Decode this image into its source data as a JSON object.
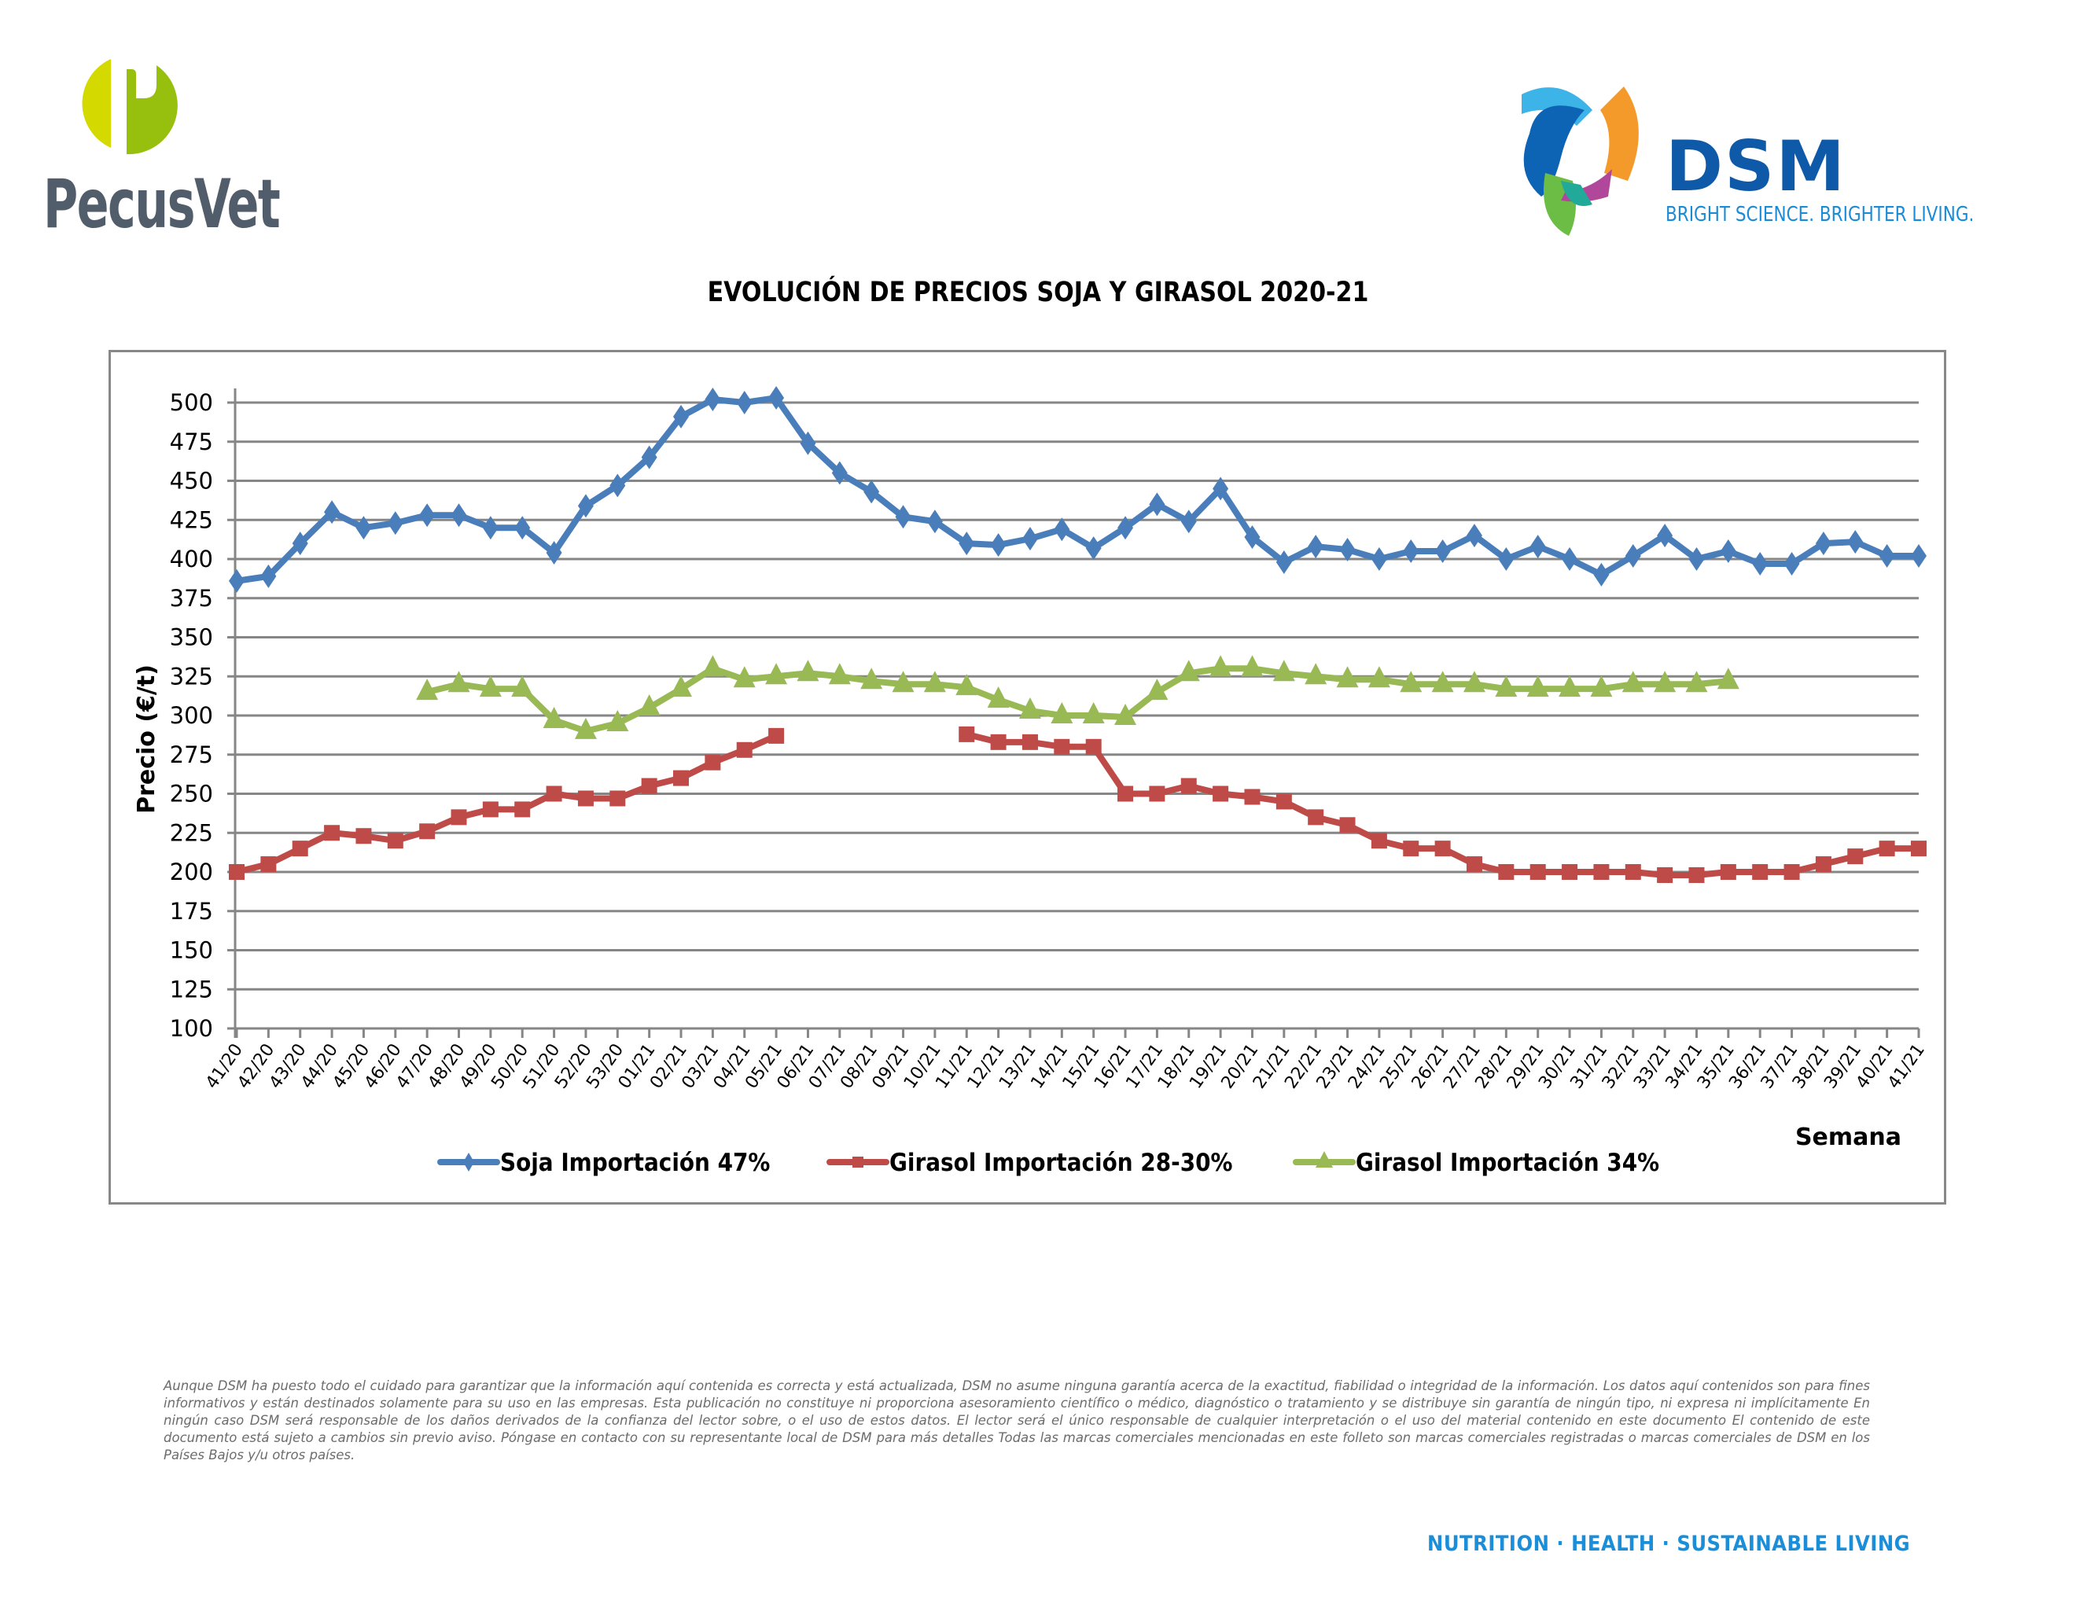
{
  "header": {
    "left_logo_text": "PecusVet",
    "right_logo_text": "DSM",
    "right_logo_tagline": "BRIGHT SCIENCE. BRIGHTER LIVING."
  },
  "colors": {
    "soja": "#4a7ebb",
    "girasol_28_30": "#be4b48",
    "girasol_34": "#98b954",
    "gridline": "#868686",
    "pecus_light_green": "#d4da00",
    "pecus_green": "#97bf0d",
    "pecus_gray": "#525d6b",
    "dsm_blue": "#0f5aa8",
    "dsm_light_blue": "#1a8ed8"
  },
  "chart_data": {
    "type": "line",
    "title": "EVOLUCIÓN DE PRECIOS SOJA Y GIRASOL 2020-21",
    "xlabel": "Semana",
    "ylabel": "Precio (€/t)",
    "ylim": [
      100,
      500
    ],
    "yticks": [
      100,
      125,
      150,
      175,
      200,
      225,
      250,
      275,
      300,
      325,
      350,
      375,
      400,
      425,
      450,
      475,
      500
    ],
    "grid": true,
    "legend_position": "bottom",
    "categories": [
      "41/20",
      "42/20",
      "43/20",
      "44/20",
      "45/20",
      "46/20",
      "47/20",
      "48/20",
      "49/20",
      "50/20",
      "51/20",
      "52/20",
      "53/20",
      "01/21",
      "02/21",
      "03/21",
      "04/21",
      "05/21",
      "06/21",
      "07/21",
      "08/21",
      "09/21",
      "10/21",
      "11/21",
      "12/21",
      "13/21",
      "14/21",
      "15/21",
      "16/21",
      "17/21",
      "18/21",
      "19/21",
      "20/21",
      "21/21",
      "22/21",
      "23/21",
      "24/21",
      "25/21",
      "26/21",
      "27/21",
      "28/21",
      "29/21",
      "30/21",
      "31/21",
      "32/21",
      "33/21",
      "34/21",
      "35/21",
      "36/21",
      "37/21",
      "38/21",
      "39/21",
      "40/21",
      "41/21"
    ],
    "series": [
      {
        "name": "Soja Importación 47%",
        "marker": "diamond",
        "values": [
          386,
          389,
          410,
          430,
          420,
          423,
          428,
          428,
          420,
          420,
          404,
          434,
          447,
          465,
          491,
          502,
          500,
          503,
          474,
          455,
          443,
          427,
          424,
          410,
          409,
          413,
          419,
          407,
          420,
          435,
          424,
          445,
          414,
          398,
          408,
          406,
          400,
          405,
          405,
          415,
          400,
          408,
          400,
          390,
          402,
          415,
          400,
          405,
          397,
          397,
          410,
          411,
          402,
          402
        ]
      },
      {
        "name": "Girasol Importación 28-30%",
        "marker": "square",
        "values": [
          200,
          205,
          215,
          225,
          223,
          220,
          226,
          235,
          240,
          240,
          250,
          247,
          247,
          255,
          260,
          270,
          278,
          287,
          null,
          null,
          null,
          null,
          null,
          288,
          283,
          283,
          280,
          280,
          250,
          250,
          255,
          250,
          248,
          245,
          235,
          230,
          220,
          215,
          215,
          205,
          200,
          200,
          200,
          200,
          200,
          198,
          198,
          200,
          200,
          200,
          205,
          210,
          215,
          215
        ]
      },
      {
        "name": "Girasol Importación 34%",
        "marker": "triangle",
        "values": [
          null,
          null,
          null,
          null,
          null,
          null,
          315,
          320,
          317,
          317,
          297,
          290,
          295,
          305,
          317,
          330,
          323,
          325,
          327,
          325,
          322,
          320,
          320,
          318,
          310,
          303,
          300,
          300,
          299,
          315,
          327,
          330,
          330,
          327,
          325,
          323,
          323,
          320,
          320,
          320,
          317,
          317,
          317,
          317,
          320,
          320,
          320,
          322,
          null,
          null,
          null,
          null,
          null,
          null
        ]
      }
    ]
  },
  "disclaimer": "Aunque DSM ha puesto todo el cuidado para garantizar que la información aquí contenida es correcta y está actualizada, DSM no asume ninguna garantía acerca de la exactitud, fiabilidad o integridad de la información. Los datos aquí contenidos son para fines informativos y están destinados solamente para su uso en las empresas. Esta publicación no constituye ni proporciona asesoramiento científico o médico, diagnóstico o tratamiento y se distribuye sin garantía de ningún tipo, ni expresa ni implícitamente En ningún caso DSM será responsable de los daños derivados de la confianza del lector sobre, o el uso de estos datos. El lector será el único responsable de cualquier interpretación o el uso del material contenido en este documento El contenido de este documento está sujeto a cambios sin previo aviso. Póngase en contacto con su representante local de DSM para más detalles Todas las marcas comerciales mencionadas en este folleto son marcas comerciales registradas o marcas comerciales de DSM en los Países Bajos y/u otros países.",
  "footer": {
    "tagline": "NUTRITION  ·  HEALTH  ·  SUSTAINABLE LIVING"
  }
}
